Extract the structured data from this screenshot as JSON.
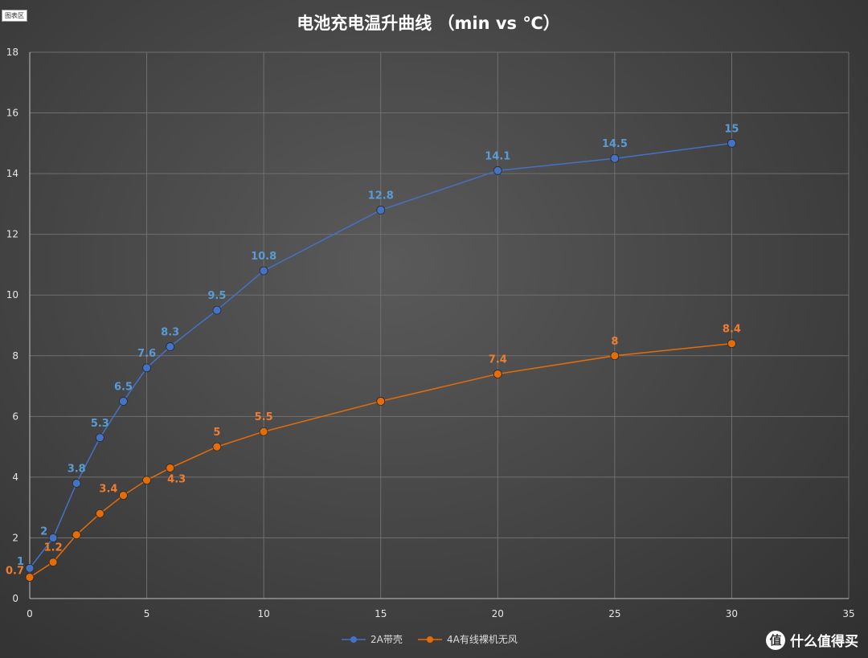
{
  "chart_area_tag": "图表区",
  "watermark": {
    "logo_text": "值",
    "text": "什么值得买"
  },
  "chart_data": {
    "type": "line",
    "title": "电池充电温升曲线 （min vs ℃）",
    "xlabel": "",
    "ylabel": "",
    "xlim": [
      0,
      35
    ],
    "ylim": [
      0,
      18
    ],
    "x_ticks": [
      0,
      5,
      10,
      15,
      20,
      25,
      30,
      35
    ],
    "y_ticks": [
      0,
      2,
      4,
      6,
      8,
      10,
      12,
      14,
      16,
      18
    ],
    "grid": true,
    "legend_position": "bottom",
    "series": [
      {
        "name": "2A带壳",
        "color": "#4472c4",
        "label_color": "#5b9bd5",
        "x": [
          0,
          1,
          2,
          3,
          4,
          5,
          6,
          8,
          10,
          15,
          20,
          25,
          30
        ],
        "y": [
          1,
          2,
          3.8,
          5.3,
          6.5,
          7.6,
          8.3,
          9.5,
          10.8,
          12.8,
          14.1,
          14.5,
          15
        ],
        "labels": [
          "1",
          "2",
          "3.8",
          "5.3",
          "6.5",
          "7.6",
          "8.3",
          "9.5",
          "10.8",
          "12.8",
          "14.1",
          "14.5",
          "15"
        ],
        "label_positions": [
          "left",
          "left",
          "above",
          "above",
          "above",
          "above",
          "above",
          "above",
          "above",
          "above",
          "above",
          "above",
          "above"
        ]
      },
      {
        "name": "4A有线裸机无风",
        "color": "#e46c0a",
        "label_color": "#ed7d31",
        "x": [
          0,
          1,
          2,
          3,
          4,
          5,
          6,
          8,
          10,
          15,
          20,
          25,
          30
        ],
        "y": [
          0.7,
          1.2,
          2.1,
          2.8,
          3.4,
          3.9,
          4.3,
          5,
          5.5,
          6.5,
          7.4,
          8,
          8.4
        ],
        "labels": [
          "0.7",
          "1.2",
          "",
          "",
          "3.4",
          "",
          "4.3",
          "5",
          "5.5",
          "",
          "7.4",
          "8",
          "8.4"
        ],
        "label_positions": [
          "left",
          "above",
          "none",
          "none",
          "left",
          "none",
          "below",
          "above",
          "above",
          "none",
          "above",
          "above",
          "above"
        ]
      }
    ]
  }
}
